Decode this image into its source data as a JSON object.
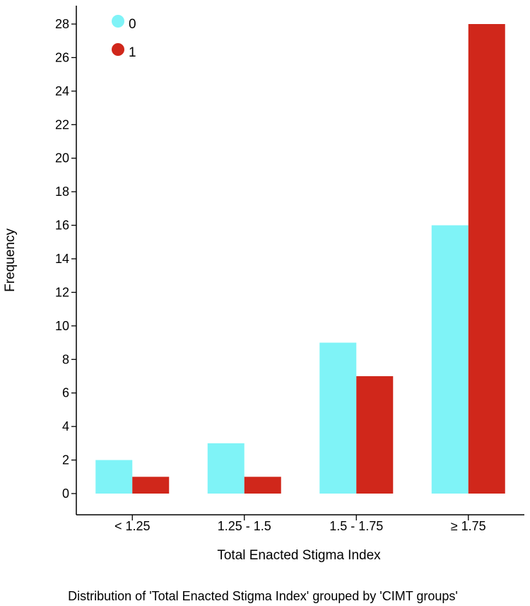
{
  "chart_data": {
    "type": "bar",
    "categories": [
      "< 1.25",
      "1.25 - 1.5",
      "1.5 - 1.75",
      "≥ 1.75"
    ],
    "series": [
      {
        "name": "0",
        "color": "#7ff3f7",
        "values": [
          2,
          3,
          9,
          16
        ]
      },
      {
        "name": "1",
        "color": "#d0271b",
        "values": [
          1,
          1,
          7,
          28
        ]
      }
    ],
    "xlabel": "Total Enacted Stigma Index",
    "ylabel": "Frequency",
    "ylim": [
      0,
      29
    ],
    "yticks": [
      0,
      2,
      4,
      6,
      8,
      10,
      12,
      14,
      16,
      18,
      20,
      22,
      24,
      26,
      28
    ],
    "grid": false,
    "legend_position": "top-left"
  },
  "caption": "Distribution of 'Total Enacted Stigma Index' grouped by 'CIMT groups'"
}
